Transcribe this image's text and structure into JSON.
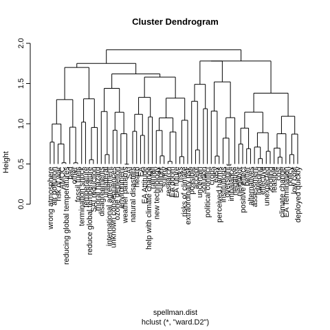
{
  "chart_data": {
    "type": "dendrogram",
    "title": "Cluster Dendrogram",
    "ylabel": "Height",
    "xlabel": "spellman.dist",
    "sublabel": "hclust (*, \"ward.D2\")",
    "ylim": [
      0,
      2.0
    ],
    "yticks": [
      0.0,
      0.5,
      1.0,
      1.5,
      2.0
    ],
    "ytick_labels": [
      "0.0",
      "0.5",
      "1.0",
      "1.5",
      "2.0"
    ],
    "leaves": [
      "wrong atmosphere",
      "air pollution",
      "risk of war",
      "AMOC",
      "reducing global temperatures",
      "bad",
      "other",
      "fossil fuels",
      "termination shock",
      "temperature",
      "reduce global temperature",
      "SAI reduction",
      "moral hazard",
      "disagreements",
      "unilateral",
      "international agreement",
      "unknown consequences",
      "ozone depletion",
      "environment",
      "weather patterns",
      "SAI",
      "natural disasters",
      "health",
      "EA",
      "EA Attitude",
      "help with climate change",
      "rainfall",
      "new technology",
      "sunlight",
      "sunny",
      "research",
      "EA doom",
      "EA future",
      "risks",
      "risks of climate",
      "extraordinary risk",
      "possible",
      "accept",
      "uncertain",
      "solution",
      "political conflict",
      "crops",
      "easy",
      "perceived harms",
      "institutions",
      "oversight",
      "imbalance",
      "negative",
      "neighbor",
      "positive effect",
      "better",
      "alternatives",
      "assessment",
      "lowering",
      "effective",
      "unexpected",
      "cooling",
      "feasible",
      "cost",
      "climate change",
      "EA Termination",
      "policy",
      "low cost",
      "deployed quickly"
    ]
  }
}
